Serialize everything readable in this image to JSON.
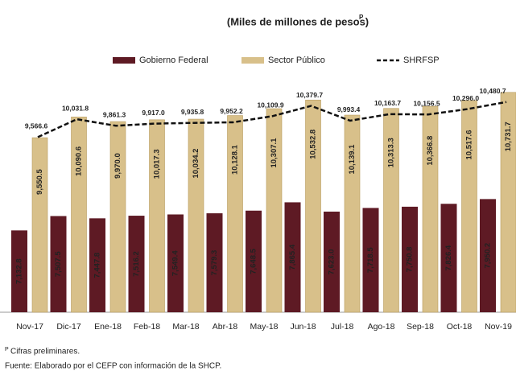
{
  "chart_data": {
    "type": "bar",
    "title": "(Miles de millones de pesos)",
    "title_superscript": "P",
    "categories": [
      "Nov-17",
      "Dic-17",
      "Ene-18",
      "Feb-18",
      "Mar-18",
      "Abr-18",
      "May-18",
      "Jun-18",
      "Jul-18",
      "Ago-18",
      "Sep-18",
      "Oct-18",
      "Nov-19"
    ],
    "ylim": [
      5000,
      11000
    ],
    "series": [
      {
        "name": "Gobierno Federal",
        "type": "bar",
        "color": "#5e1a24",
        "values": [
          7132.8,
          7507.5,
          7447.8,
          7516.2,
          7549.4,
          7579.3,
          7648.5,
          7865.4,
          7623.0,
          7718.5,
          7750.8,
          7826.4,
          7950.2
        ],
        "value_labels": [
          "7,132.8",
          "7,507.5",
          "7,447.8",
          "7,516.2",
          "7,549.4",
          "7,579.3",
          "7,648.5",
          "7,865.4",
          "7,623.0",
          "7,718.5",
          "7,750.8",
          "7,826.4",
          "7,950.2"
        ]
      },
      {
        "name": "Sector Público",
        "type": "bar",
        "color": "#d8c08a",
        "values": [
          9550.5,
          10090.6,
          9970.0,
          10017.3,
          10034.2,
          10128.1,
          10307.1,
          10532.8,
          10139.1,
          10313.3,
          10366.8,
          10517.6,
          10731.7
        ],
        "value_labels": [
          "9,550.5",
          "10,090.6",
          "9,970.0",
          "10,017.3",
          "10,034.2",
          "10,128.1",
          "10,307.1",
          "10,532.8",
          "10,139.1",
          "10,313.3",
          "10,366.8",
          "10,517.6",
          "10,731.7"
        ]
      },
      {
        "name": "SHRFSP",
        "type": "line",
        "color": "#111111",
        "dashed": true,
        "values": [
          9566.6,
          10031.8,
          9861.3,
          9917.0,
          9935.8,
          9952.2,
          10109.9,
          10379.7,
          9993.4,
          10163.7,
          10156.5,
          10296.0,
          10480.7
        ],
        "value_labels": [
          "9,566.6",
          "10,031.8",
          "9,861.3",
          "9,917.0",
          "9,935.8",
          "9,952.2",
          "10,109.9",
          "10,379.7",
          "9,993.4",
          "10,163.7",
          "10,156.5",
          "10,296.0",
          "10,480.7"
        ]
      }
    ],
    "notes": [
      {
        "mark": "P",
        "text": "Cifras preliminares."
      },
      {
        "text": "Fuente: Elaborado por el CEFP con información de la SHCP."
      }
    ]
  }
}
